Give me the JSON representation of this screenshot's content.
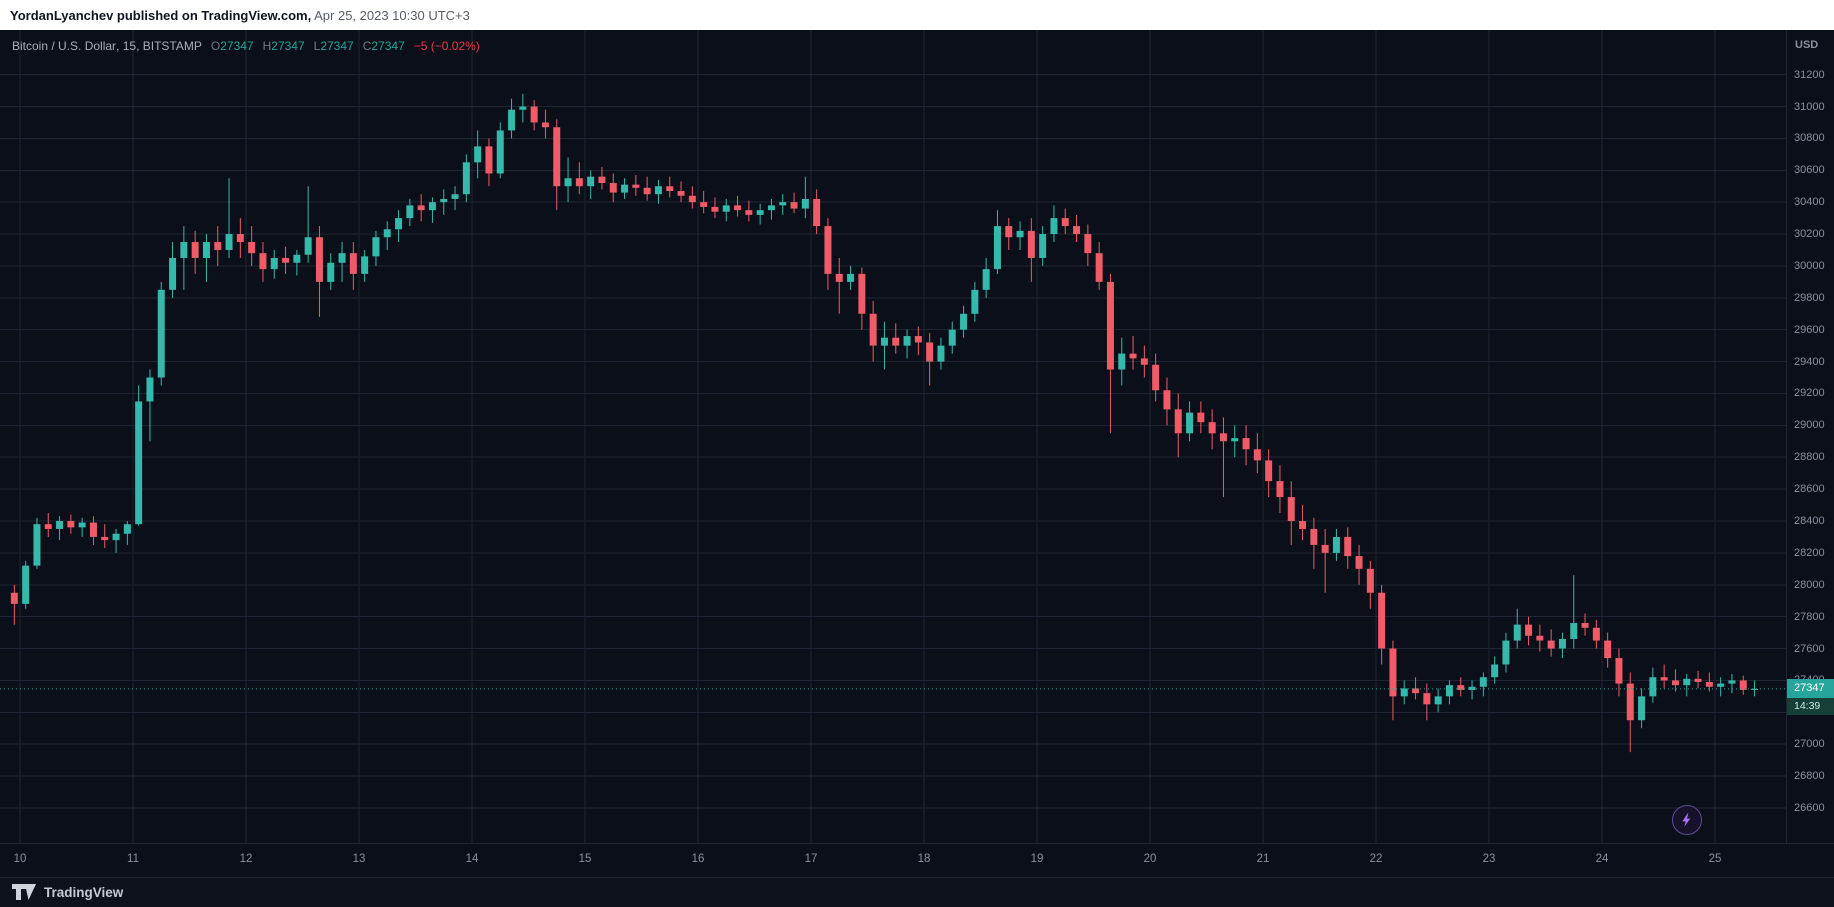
{
  "attribution": {
    "author": "YordanLyanchev",
    "middle": " published on TradingView.com,",
    "timestamp": " Apr 25, 2023 10:30 UTC+3"
  },
  "legend": {
    "symbol": "Bitcoin / U.S. Dollar",
    "sep": ", ",
    "interval": "15",
    "exchange": "BITSTAMP",
    "ohlc": {
      "o_label": "O",
      "o": "27347",
      "h_label": "H",
      "h": "27347",
      "l_label": "L",
      "l": "27347",
      "c_label": "C",
      "c": "27347",
      "change": "−5 (−0.02%)"
    }
  },
  "price_axis": {
    "currency": "USD",
    "current_price": "27347",
    "countdown": "14:39"
  },
  "footer": {
    "brand": "TradingView"
  },
  "icons": {
    "flash": "lightning-bolt",
    "logo": "tradingview-mark"
  },
  "colors": {
    "background": "#0b0f19",
    "grid": "#1d2433",
    "axis_text": "#8b90a0",
    "up": "#35b9ab",
    "down": "#ef5b66",
    "accent": "#26a69a",
    "negative": "#f23645",
    "price_tag_bg": "#26a69a",
    "countdown_bg": "#173f38",
    "flash_purple": "#a875f7"
  },
  "chart_data": {
    "type": "candlestick",
    "title": "Bitcoin / U.S. Dollar, 15, BITSTAMP",
    "symbol": "BTC/USD",
    "exchange": "BITSTAMP",
    "interval": "15 minutes",
    "ylabel": "Price (USD)",
    "ylim": [
      26380,
      31480
    ],
    "grid": true,
    "current_price": 27347,
    "bar_countdown": "14:39",
    "price_gridlines": [
      31200,
      31000,
      30800,
      30600,
      30400,
      30200,
      30000,
      29800,
      29600,
      29400,
      29200,
      29000,
      28800,
      28600,
      28400,
      28200,
      28000,
      27800,
      27600,
      27400,
      27200,
      27000,
      26800,
      26600
    ],
    "x_axis_days": [
      "10",
      "11",
      "12",
      "13",
      "14",
      "15",
      "16",
      "17",
      "18",
      "19",
      "20",
      "21",
      "22",
      "23",
      "24",
      "25"
    ],
    "x_start_day": 9.95,
    "days_per_candle": 0.1,
    "candles_ohlc": [
      [
        27950,
        28000,
        27750,
        27880
      ],
      [
        27880,
        28150,
        27850,
        28120
      ],
      [
        28120,
        28420,
        28100,
        28380
      ],
      [
        28380,
        28450,
        28300,
        28350
      ],
      [
        28350,
        28430,
        28280,
        28400
      ],
      [
        28400,
        28440,
        28320,
        28360
      ],
      [
        28360,
        28420,
        28300,
        28390
      ],
      [
        28390,
        28430,
        28250,
        28300
      ],
      [
        28300,
        28380,
        28230,
        28280
      ],
      [
        28280,
        28350,
        28200,
        28320
      ],
      [
        28320,
        28400,
        28250,
        28380
      ],
      [
        28380,
        29250,
        28370,
        29150
      ],
      [
        29150,
        29350,
        28900,
        29300
      ],
      [
        29300,
        29900,
        29250,
        29850
      ],
      [
        29850,
        30150,
        29800,
        30050
      ],
      [
        30050,
        30250,
        29850,
        30150
      ],
      [
        30150,
        30220,
        29950,
        30050
      ],
      [
        30050,
        30200,
        29900,
        30150
      ],
      [
        30150,
        30250,
        30000,
        30100
      ],
      [
        30100,
        30550,
        30050,
        30200
      ],
      [
        30200,
        30300,
        30050,
        30150
      ],
      [
        30150,
        30250,
        30000,
        30080
      ],
      [
        30080,
        30150,
        29900,
        29980
      ],
      [
        29980,
        30100,
        29920,
        30050
      ],
      [
        30050,
        30120,
        29950,
        30020
      ],
      [
        30020,
        30100,
        29940,
        30070
      ],
      [
        30070,
        30500,
        30020,
        30180
      ],
      [
        30180,
        30250,
        29680,
        29900
      ],
      [
        29900,
        30080,
        29850,
        30020
      ],
      [
        30020,
        30150,
        29900,
        30080
      ],
      [
        30080,
        30150,
        29850,
        29950
      ],
      [
        29950,
        30100,
        29900,
        30060
      ],
      [
        30060,
        30220,
        30000,
        30180
      ],
      [
        30180,
        30280,
        30100,
        30230
      ],
      [
        30230,
        30350,
        30150,
        30300
      ],
      [
        30300,
        30420,
        30250,
        30380
      ],
      [
        30380,
        30450,
        30280,
        30350
      ],
      [
        30350,
        30430,
        30270,
        30400
      ],
      [
        30400,
        30480,
        30320,
        30420
      ],
      [
        30420,
        30500,
        30350,
        30450
      ],
      [
        30450,
        30700,
        30400,
        30650
      ],
      [
        30650,
        30850,
        30550,
        30750
      ],
      [
        30750,
        30800,
        30500,
        30580
      ],
      [
        30580,
        30900,
        30550,
        30850
      ],
      [
        30850,
        31050,
        30800,
        30980
      ],
      [
        30980,
        31080,
        30900,
        31000
      ],
      [
        31000,
        31040,
        30850,
        30900
      ],
      [
        30900,
        30980,
        30800,
        30870
      ],
      [
        30870,
        30920,
        30350,
        30500
      ],
      [
        30500,
        30680,
        30400,
        30550
      ],
      [
        30550,
        30650,
        30450,
        30500
      ],
      [
        30500,
        30600,
        30420,
        30560
      ],
      [
        30560,
        30620,
        30480,
        30520
      ],
      [
        30520,
        30580,
        30400,
        30460
      ],
      [
        30460,
        30550,
        30420,
        30510
      ],
      [
        30510,
        30570,
        30440,
        30490
      ],
      [
        30490,
        30560,
        30410,
        30450
      ],
      [
        30450,
        30540,
        30390,
        30500
      ],
      [
        30500,
        30560,
        30430,
        30470
      ],
      [
        30470,
        30530,
        30400,
        30440
      ],
      [
        30440,
        30500,
        30360,
        30400
      ],
      [
        30400,
        30470,
        30330,
        30370
      ],
      [
        30370,
        30430,
        30300,
        30340
      ],
      [
        30340,
        30420,
        30280,
        30380
      ],
      [
        30380,
        30440,
        30310,
        30350
      ],
      [
        30350,
        30410,
        30280,
        30320
      ],
      [
        30320,
        30390,
        30260,
        30350
      ],
      [
        30350,
        30420,
        30290,
        30380
      ],
      [
        30380,
        30450,
        30320,
        30400
      ],
      [
        30400,
        30460,
        30330,
        30360
      ],
      [
        30360,
        30560,
        30300,
        30420
      ],
      [
        30420,
        30480,
        30200,
        30250
      ],
      [
        30250,
        30300,
        29850,
        29950
      ],
      [
        29950,
        30050,
        29700,
        29900
      ],
      [
        29900,
        30000,
        29850,
        29950
      ],
      [
        29950,
        29990,
        29600,
        29700
      ],
      [
        29700,
        29780,
        29400,
        29500
      ],
      [
        29500,
        29650,
        29350,
        29550
      ],
      [
        29550,
        29640,
        29450,
        29500
      ],
      [
        29500,
        29600,
        29420,
        29560
      ],
      [
        29560,
        29620,
        29440,
        29520
      ],
      [
        29520,
        29580,
        29250,
        29400
      ],
      [
        29400,
        29550,
        29350,
        29500
      ],
      [
        29500,
        29650,
        29450,
        29600
      ],
      [
        29600,
        29750,
        29550,
        29700
      ],
      [
        29700,
        29900,
        29650,
        29850
      ],
      [
        29850,
        30050,
        29800,
        29980
      ],
      [
        29980,
        30350,
        29950,
        30250
      ],
      [
        30250,
        30300,
        30100,
        30180
      ],
      [
        30180,
        30280,
        30100,
        30220
      ],
      [
        30220,
        30300,
        29900,
        30050
      ],
      [
        30050,
        30250,
        30000,
        30200
      ],
      [
        30200,
        30380,
        30150,
        30300
      ],
      [
        30300,
        30360,
        30200,
        30250
      ],
      [
        30250,
        30320,
        30150,
        30200
      ],
      [
        30200,
        30260,
        30000,
        30080
      ],
      [
        30080,
        30150,
        29850,
        29900
      ],
      [
        29900,
        29950,
        28950,
        29350
      ],
      [
        29350,
        29550,
        29250,
        29450
      ],
      [
        29450,
        29560,
        29350,
        29420
      ],
      [
        29420,
        29500,
        29300,
        29380
      ],
      [
        29380,
        29450,
        29150,
        29220
      ],
      [
        29220,
        29300,
        29000,
        29100
      ],
      [
        29100,
        29200,
        28800,
        28950
      ],
      [
        28950,
        29150,
        28900,
        29080
      ],
      [
        29080,
        29150,
        28950,
        29020
      ],
      [
        29020,
        29100,
        28850,
        28950
      ],
      [
        28950,
        29050,
        28550,
        28900
      ],
      [
        28900,
        29000,
        28800,
        28920
      ],
      [
        28920,
        29000,
        28750,
        28850
      ],
      [
        28850,
        28950,
        28700,
        28780
      ],
      [
        28780,
        28850,
        28550,
        28650
      ],
      [
        28650,
        28750,
        28450,
        28550
      ],
      [
        28550,
        28650,
        28250,
        28400
      ],
      [
        28400,
        28500,
        28280,
        28350
      ],
      [
        28350,
        28420,
        28100,
        28250
      ],
      [
        28250,
        28350,
        27950,
        28200
      ],
      [
        28200,
        28350,
        28150,
        28300
      ],
      [
        28300,
        28360,
        28100,
        28180
      ],
      [
        28180,
        28250,
        28000,
        28100
      ],
      [
        28100,
        28150,
        27850,
        27950
      ],
      [
        27950,
        28000,
        27500,
        27600
      ],
      [
        27600,
        27650,
        27150,
        27300
      ],
      [
        27300,
        27400,
        27250,
        27350
      ],
      [
        27350,
        27420,
        27280,
        27320
      ],
      [
        27320,
        27380,
        27150,
        27250
      ],
      [
        27250,
        27350,
        27200,
        27300
      ],
      [
        27300,
        27400,
        27250,
        27370
      ],
      [
        27370,
        27420,
        27300,
        27340
      ],
      [
        27340,
        27400,
        27280,
        27360
      ],
      [
        27360,
        27450,
        27300,
        27420
      ],
      [
        27420,
        27550,
        27380,
        27500
      ],
      [
        27500,
        27700,
        27450,
        27650
      ],
      [
        27650,
        27850,
        27600,
        27750
      ],
      [
        27750,
        27800,
        27620,
        27680
      ],
      [
        27680,
        27750,
        27580,
        27650
      ],
      [
        27650,
        27720,
        27550,
        27600
      ],
      [
        27600,
        27700,
        27540,
        27660
      ],
      [
        27660,
        28060,
        27600,
        27760
      ],
      [
        27760,
        27820,
        27680,
        27730
      ],
      [
        27730,
        27780,
        27600,
        27650
      ],
      [
        27650,
        27700,
        27480,
        27540
      ],
      [
        27540,
        27600,
        27300,
        27380
      ],
      [
        27380,
        27450,
        26950,
        27150
      ],
      [
        27150,
        27350,
        27100,
        27300
      ],
      [
        27300,
        27480,
        27260,
        27420
      ],
      [
        27420,
        27500,
        27350,
        27400
      ],
      [
        27400,
        27470,
        27330,
        27370
      ],
      [
        27370,
        27440,
        27300,
        27410
      ],
      [
        27410,
        27460,
        27350,
        27390
      ],
      [
        27390,
        27450,
        27330,
        27360
      ],
      [
        27360,
        27420,
        27300,
        27380
      ],
      [
        27380,
        27440,
        27320,
        27400
      ],
      [
        27400,
        27430,
        27310,
        27340
      ],
      [
        27340,
        27400,
        27300,
        27347
      ]
    ]
  }
}
